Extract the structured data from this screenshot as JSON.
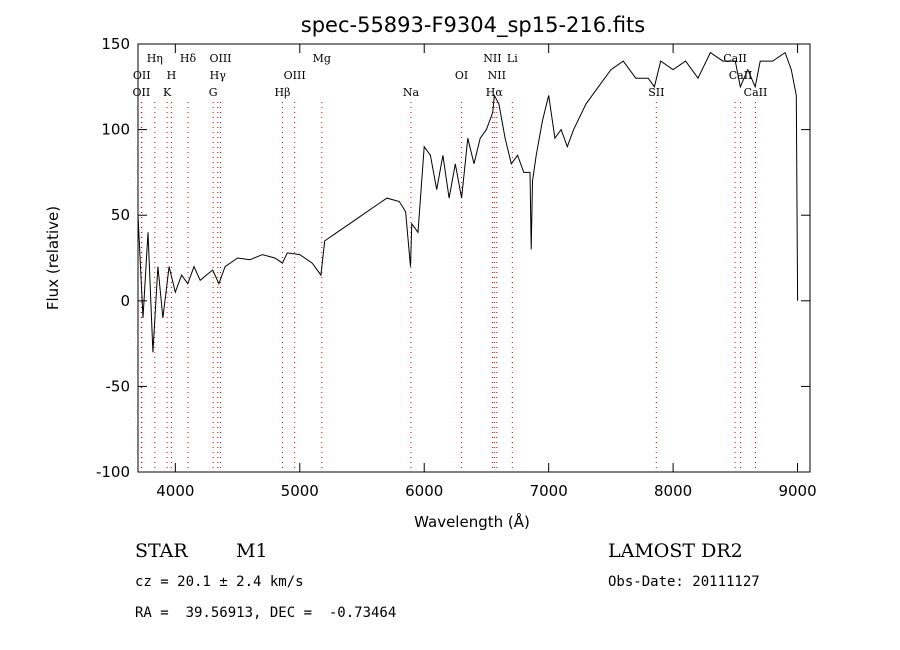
{
  "chart_data": {
    "type": "line",
    "title": "spec-55893-F9304_sp15-216.fits",
    "xlabel": "Wavelength (Å)",
    "ylabel": "Flux (relative)",
    "xlim": [
      3700,
      9100
    ],
    "ylim": [
      -100,
      150
    ],
    "xticks": [
      4000,
      5000,
      6000,
      7000,
      8000,
      9000
    ],
    "yticks": [
      -100,
      -50,
      0,
      50,
      100,
      150
    ],
    "grid": false,
    "series": [
      {
        "x": [
          3700,
          3740,
          3780,
          3820,
          3860,
          3900,
          3950,
          4000,
          4050,
          4100,
          4150,
          4200,
          4250,
          4300,
          4350,
          4400,
          4500,
          4600,
          4700,
          4800,
          4860,
          4900,
          5000,
          5100,
          5170,
          5200,
          5300,
          5400,
          5500,
          5600,
          5700,
          5800,
          5850,
          5890,
          5900,
          5950,
          6000,
          6050,
          6100,
          6150,
          6200,
          6250,
          6300,
          6350,
          6400,
          6450,
          6500,
          6550,
          6563,
          6600,
          6650,
          6700,
          6750,
          6800,
          6850,
          6860,
          6870,
          6900,
          6950,
          7000,
          7050,
          7100,
          7150,
          7200,
          7300,
          7400,
          7500,
          7600,
          7700,
          7800,
          7850,
          7900,
          8000,
          8100,
          8200,
          8300,
          8400,
          8500,
          8540,
          8600,
          8660,
          8700,
          8800,
          8900,
          8950,
          8990,
          9000
        ],
        "y": [
          50,
          -10,
          40,
          -30,
          20,
          -10,
          20,
          5,
          15,
          10,
          20,
          12,
          15,
          18,
          10,
          20,
          25,
          24,
          27,
          25,
          22,
          28,
          27,
          22,
          15,
          35,
          40,
          45,
          50,
          55,
          60,
          58,
          52,
          20,
          45,
          40,
          90,
          85,
          65,
          85,
          60,
          80,
          60,
          95,
          80,
          95,
          100,
          110,
          120,
          115,
          95,
          80,
          85,
          75,
          75,
          30,
          70,
          85,
          105,
          120,
          95,
          100,
          90,
          100,
          115,
          125,
          135,
          140,
          130,
          130,
          125,
          140,
          135,
          140,
          130,
          145,
          140,
          140,
          125,
          135,
          125,
          140,
          140,
          145,
          135,
          120,
          0
        ]
      }
    ],
    "line_markers": [
      {
        "x": 3727,
        "label": "OII",
        "row": 3
      },
      {
        "x": 3730,
        "label": "OII",
        "row": 2
      },
      {
        "x": 3835,
        "label": "Hη",
        "row": 1
      },
      {
        "x": 3934,
        "label": "K",
        "row": 3
      },
      {
        "x": 3969,
        "label": "H",
        "row": 2
      },
      {
        "x": 4102,
        "label": "Hδ",
        "row": 1
      },
      {
        "x": 4304,
        "label": "G",
        "row": 3
      },
      {
        "x": 4341,
        "label": "Hγ",
        "row": 2
      },
      {
        "x": 4363,
        "label": "OIII",
        "row": 1
      },
      {
        "x": 4861,
        "label": "Hβ",
        "row": 3
      },
      {
        "x": 4959,
        "label": "OIII",
        "row": 2
      },
      {
        "x": 5177,
        "label": "Mg",
        "row": 1
      },
      {
        "x": 5893,
        "label": "Na",
        "row": 3
      },
      {
        "x": 6300,
        "label": "OI",
        "row": 2
      },
      {
        "x": 6548,
        "label": "NII",
        "row": 1
      },
      {
        "x": 6563,
        "label": "Hα",
        "row": 3
      },
      {
        "x": 6583,
        "label": "NII",
        "row": 2
      },
      {
        "x": 6708,
        "label": "Li",
        "row": 1
      },
      {
        "x": 7865,
        "label": "SII",
        "row": 3
      },
      {
        "x": 8498,
        "label": "CaII",
        "row": 1
      },
      {
        "x": 8542,
        "label": "CaII",
        "row": 2
      },
      {
        "x": 8662,
        "label": "CaII",
        "row": 3
      }
    ]
  },
  "info": {
    "object_class": "STAR",
    "subclass": "M1",
    "survey": "LAMOST DR2",
    "velocity": "cz = 20.1 ± 2.4 km/s",
    "obs_date": "Obs-Date: 20111127",
    "coords": "RA =  39.56913, DEC =  -0.73464"
  }
}
